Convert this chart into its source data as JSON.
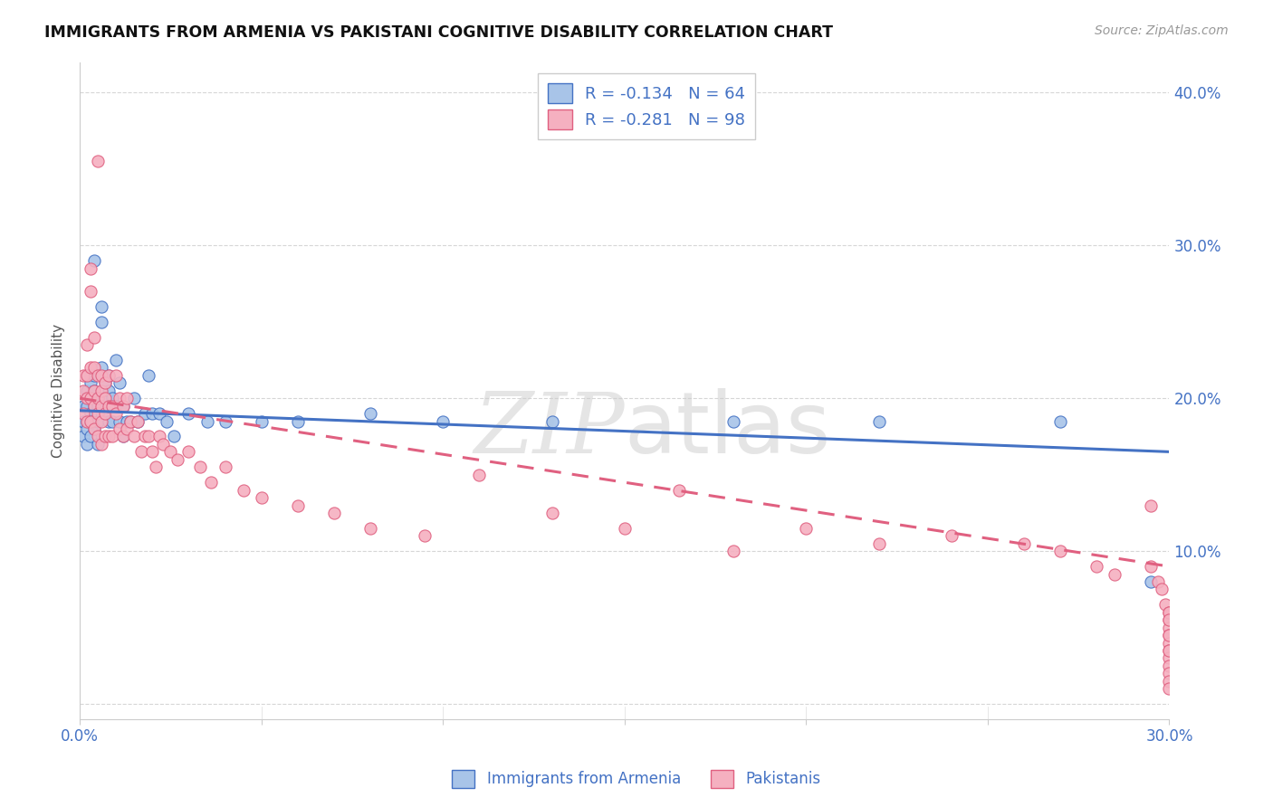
{
  "title": "IMMIGRANTS FROM ARMENIA VS PAKISTANI COGNITIVE DISABILITY CORRELATION CHART",
  "source": "Source: ZipAtlas.com",
  "ylabel": "Cognitive Disability",
  "xlim": [
    0.0,
    0.3
  ],
  "ylim": [
    -0.01,
    0.42
  ],
  "color_armenia": "#a8c4e8",
  "color_pakistan": "#f5b0c0",
  "color_blue": "#4472c4",
  "color_pink": "#e06080",
  "watermark_text": "ZIPatlas",
  "legend1": "R = -0.134   N = 64",
  "legend2": "R = -0.281   N = 98",
  "arm_x": [
    0.001,
    0.001,
    0.001,
    0.002,
    0.002,
    0.002,
    0.002,
    0.002,
    0.002,
    0.003,
    0.003,
    0.003,
    0.003,
    0.003,
    0.003,
    0.004,
    0.004,
    0.004,
    0.004,
    0.004,
    0.005,
    0.005,
    0.005,
    0.005,
    0.006,
    0.006,
    0.006,
    0.006,
    0.007,
    0.007,
    0.007,
    0.008,
    0.008,
    0.008,
    0.009,
    0.009,
    0.01,
    0.01,
    0.011,
    0.011,
    0.012,
    0.012,
    0.013,
    0.014,
    0.015,
    0.016,
    0.018,
    0.019,
    0.02,
    0.022,
    0.024,
    0.026,
    0.03,
    0.035,
    0.04,
    0.05,
    0.06,
    0.08,
    0.1,
    0.13,
    0.18,
    0.22,
    0.27,
    0.295
  ],
  "arm_y": [
    0.195,
    0.185,
    0.175,
    0.215,
    0.205,
    0.195,
    0.185,
    0.18,
    0.17,
    0.215,
    0.21,
    0.2,
    0.19,
    0.185,
    0.175,
    0.29,
    0.215,
    0.205,
    0.195,
    0.18,
    0.2,
    0.195,
    0.185,
    0.17,
    0.26,
    0.25,
    0.22,
    0.195,
    0.21,
    0.2,
    0.19,
    0.215,
    0.205,
    0.185,
    0.2,
    0.185,
    0.225,
    0.195,
    0.21,
    0.185,
    0.195,
    0.175,
    0.185,
    0.185,
    0.2,
    0.185,
    0.19,
    0.215,
    0.19,
    0.19,
    0.185,
    0.175,
    0.19,
    0.185,
    0.185,
    0.185,
    0.185,
    0.19,
    0.185,
    0.185,
    0.185,
    0.185,
    0.185,
    0.08
  ],
  "pak_x": [
    0.001,
    0.001,
    0.001,
    0.002,
    0.002,
    0.002,
    0.002,
    0.003,
    0.003,
    0.003,
    0.003,
    0.003,
    0.004,
    0.004,
    0.004,
    0.004,
    0.004,
    0.005,
    0.005,
    0.005,
    0.005,
    0.005,
    0.006,
    0.006,
    0.006,
    0.006,
    0.006,
    0.007,
    0.007,
    0.007,
    0.007,
    0.008,
    0.008,
    0.008,
    0.009,
    0.009,
    0.01,
    0.01,
    0.011,
    0.011,
    0.012,
    0.012,
    0.013,
    0.013,
    0.014,
    0.015,
    0.016,
    0.017,
    0.018,
    0.019,
    0.02,
    0.021,
    0.022,
    0.023,
    0.025,
    0.027,
    0.03,
    0.033,
    0.036,
    0.04,
    0.045,
    0.05,
    0.06,
    0.07,
    0.08,
    0.095,
    0.11,
    0.13,
    0.15,
    0.165,
    0.18,
    0.2,
    0.22,
    0.24,
    0.26,
    0.27,
    0.28,
    0.285,
    0.295,
    0.295,
    0.297,
    0.298,
    0.299,
    0.3,
    0.3,
    0.3,
    0.3,
    0.3,
    0.3,
    0.3,
    0.3,
    0.3,
    0.3,
    0.3,
    0.3,
    0.3,
    0.3,
    0.3
  ],
  "pak_y": [
    0.215,
    0.205,
    0.19,
    0.235,
    0.215,
    0.2,
    0.185,
    0.285,
    0.27,
    0.22,
    0.2,
    0.185,
    0.24,
    0.22,
    0.205,
    0.195,
    0.18,
    0.355,
    0.215,
    0.2,
    0.19,
    0.175,
    0.215,
    0.205,
    0.195,
    0.185,
    0.17,
    0.21,
    0.2,
    0.19,
    0.175,
    0.215,
    0.195,
    0.175,
    0.195,
    0.175,
    0.215,
    0.19,
    0.2,
    0.18,
    0.195,
    0.175,
    0.2,
    0.18,
    0.185,
    0.175,
    0.185,
    0.165,
    0.175,
    0.175,
    0.165,
    0.155,
    0.175,
    0.17,
    0.165,
    0.16,
    0.165,
    0.155,
    0.145,
    0.155,
    0.14,
    0.135,
    0.13,
    0.125,
    0.115,
    0.11,
    0.15,
    0.125,
    0.115,
    0.14,
    0.1,
    0.115,
    0.105,
    0.11,
    0.105,
    0.1,
    0.09,
    0.085,
    0.13,
    0.09,
    0.08,
    0.075,
    0.065,
    0.06,
    0.055,
    0.05,
    0.045,
    0.04,
    0.035,
    0.03,
    0.025,
    0.02,
    0.015,
    0.01,
    0.06,
    0.055,
    0.045,
    0.035
  ],
  "arm_trend_x": [
    0.0,
    0.3
  ],
  "arm_trend_y": [
    0.192,
    0.165
  ],
  "pak_trend_x": [
    0.0,
    0.3
  ],
  "pak_trend_y": [
    0.2,
    0.09
  ]
}
